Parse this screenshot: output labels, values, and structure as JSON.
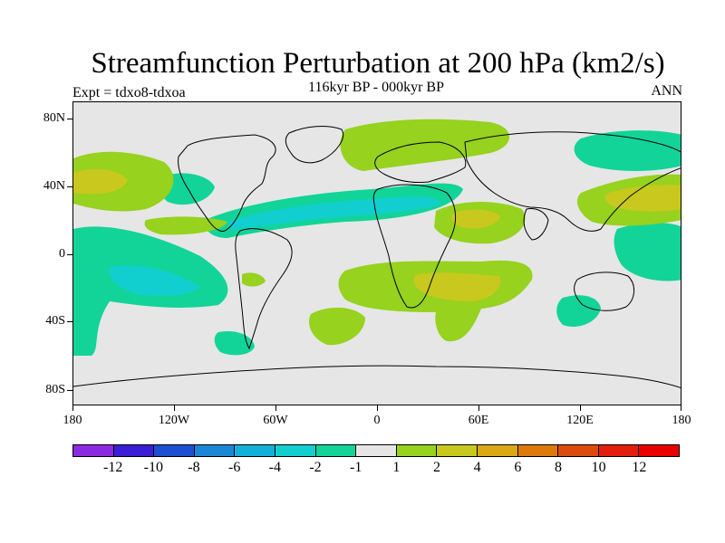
{
  "title": "Streamfunction Perturbation at 200 hPa (km2/s)",
  "subtitle": "116kyr BP - 000kyr BP",
  "expt_label": "Expt = tdxo8-tdxoa",
  "period_label": "ANN",
  "lat_labels": [
    "80N",
    "40N",
    "0",
    "40S",
    "80S"
  ],
  "lon_labels": [
    "180",
    "120W",
    "60W",
    "0",
    "60E",
    "120E",
    "180"
  ],
  "colorbar": {
    "colors": [
      "#8a2be2",
      "#3a1fd6",
      "#1e4fd1",
      "#1c86d6",
      "#11b1d9",
      "#11cfcf",
      "#12d498",
      "#e6e6e6",
      "#96d21e",
      "#c8c81e",
      "#d9a812",
      "#dc7a0c",
      "#dc4a0c",
      "#e41e0c",
      "#e80000"
    ],
    "labels": [
      "-12",
      "-10",
      "-8",
      "-6",
      "-4",
      "-2",
      "-1",
      "1",
      "2",
      "4",
      "6",
      "8",
      "10",
      "12"
    ]
  },
  "fill_colors": {
    "neg_light": "#12d498",
    "neg_mid": "#11cfcf",
    "pos_light": "#96d21e",
    "pos_mid": "#c8c81e",
    "pos_strong": "#d9a812",
    "zero": "#e6e6e6"
  }
}
